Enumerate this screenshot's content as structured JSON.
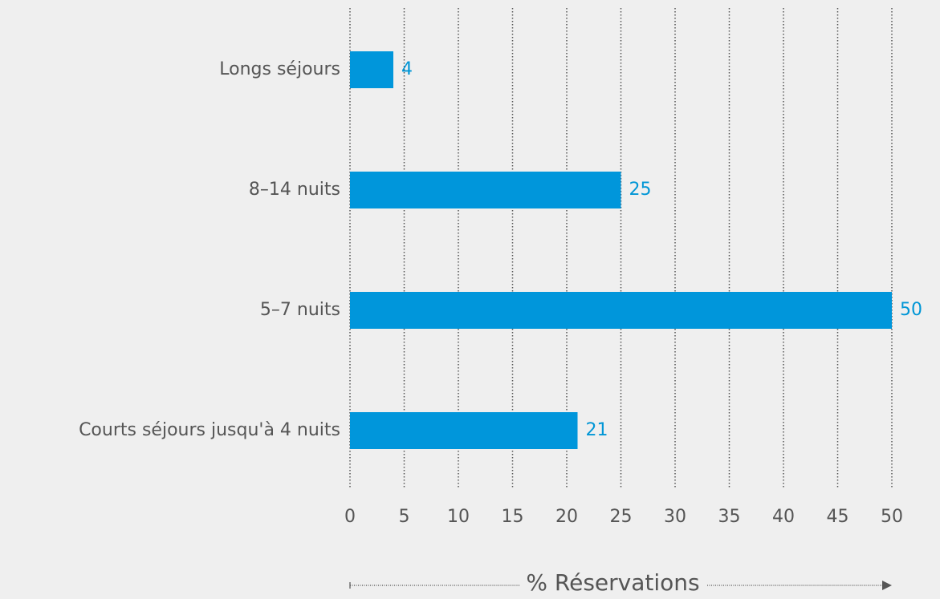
{
  "chart_data": {
    "type": "bar",
    "orientation": "horizontal",
    "categories": [
      "Longs séjours",
      "8–14 nuits",
      "5–7 nuits",
      "Courts séjours jusqu'à 4 nuits"
    ],
    "values": [
      4,
      25,
      50,
      21
    ],
    "color": "#0096db",
    "xlabel": "% Réservations",
    "xlim": [
      0,
      50
    ],
    "xticks": [
      0,
      5,
      10,
      15,
      20,
      25,
      30,
      35,
      40,
      45,
      50
    ],
    "grid": true
  }
}
